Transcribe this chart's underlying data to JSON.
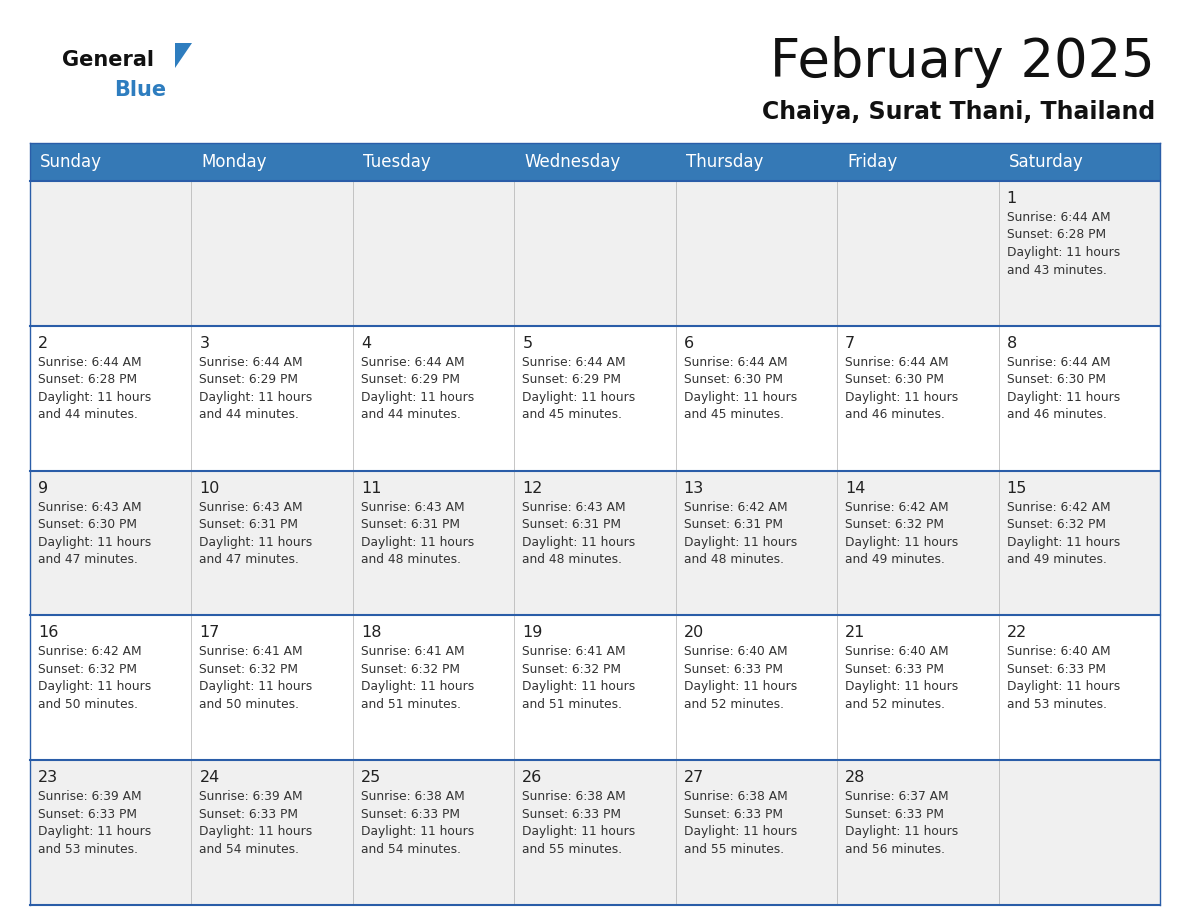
{
  "title": "February 2025",
  "subtitle": "Chaiya, Surat Thani, Thailand",
  "days_of_week": [
    "Sunday",
    "Monday",
    "Tuesday",
    "Wednesday",
    "Thursday",
    "Friday",
    "Saturday"
  ],
  "header_bg": "#3579B6",
  "header_text_color": "#FFFFFF",
  "cell_bg": "#F0F0F0",
  "cell_bg_white": "#FFFFFF",
  "separator_color": "#2A5DA8",
  "day_number_color": "#222222",
  "info_text_color": "#333333",
  "title_color": "#111111",
  "subtitle_color": "#111111",
  "logo_blue_color": "#2E7DBF",
  "weeks": [
    [
      {
        "day": null,
        "info": null
      },
      {
        "day": null,
        "info": null
      },
      {
        "day": null,
        "info": null
      },
      {
        "day": null,
        "info": null
      },
      {
        "day": null,
        "info": null
      },
      {
        "day": null,
        "info": null
      },
      {
        "day": 1,
        "info": "Sunrise: 6:44 AM\nSunset: 6:28 PM\nDaylight: 11 hours\nand 43 minutes."
      }
    ],
    [
      {
        "day": 2,
        "info": "Sunrise: 6:44 AM\nSunset: 6:28 PM\nDaylight: 11 hours\nand 44 minutes."
      },
      {
        "day": 3,
        "info": "Sunrise: 6:44 AM\nSunset: 6:29 PM\nDaylight: 11 hours\nand 44 minutes."
      },
      {
        "day": 4,
        "info": "Sunrise: 6:44 AM\nSunset: 6:29 PM\nDaylight: 11 hours\nand 44 minutes."
      },
      {
        "day": 5,
        "info": "Sunrise: 6:44 AM\nSunset: 6:29 PM\nDaylight: 11 hours\nand 45 minutes."
      },
      {
        "day": 6,
        "info": "Sunrise: 6:44 AM\nSunset: 6:30 PM\nDaylight: 11 hours\nand 45 minutes."
      },
      {
        "day": 7,
        "info": "Sunrise: 6:44 AM\nSunset: 6:30 PM\nDaylight: 11 hours\nand 46 minutes."
      },
      {
        "day": 8,
        "info": "Sunrise: 6:44 AM\nSunset: 6:30 PM\nDaylight: 11 hours\nand 46 minutes."
      }
    ],
    [
      {
        "day": 9,
        "info": "Sunrise: 6:43 AM\nSunset: 6:30 PM\nDaylight: 11 hours\nand 47 minutes."
      },
      {
        "day": 10,
        "info": "Sunrise: 6:43 AM\nSunset: 6:31 PM\nDaylight: 11 hours\nand 47 minutes."
      },
      {
        "day": 11,
        "info": "Sunrise: 6:43 AM\nSunset: 6:31 PM\nDaylight: 11 hours\nand 48 minutes."
      },
      {
        "day": 12,
        "info": "Sunrise: 6:43 AM\nSunset: 6:31 PM\nDaylight: 11 hours\nand 48 minutes."
      },
      {
        "day": 13,
        "info": "Sunrise: 6:42 AM\nSunset: 6:31 PM\nDaylight: 11 hours\nand 48 minutes."
      },
      {
        "day": 14,
        "info": "Sunrise: 6:42 AM\nSunset: 6:32 PM\nDaylight: 11 hours\nand 49 minutes."
      },
      {
        "day": 15,
        "info": "Sunrise: 6:42 AM\nSunset: 6:32 PM\nDaylight: 11 hours\nand 49 minutes."
      }
    ],
    [
      {
        "day": 16,
        "info": "Sunrise: 6:42 AM\nSunset: 6:32 PM\nDaylight: 11 hours\nand 50 minutes."
      },
      {
        "day": 17,
        "info": "Sunrise: 6:41 AM\nSunset: 6:32 PM\nDaylight: 11 hours\nand 50 minutes."
      },
      {
        "day": 18,
        "info": "Sunrise: 6:41 AM\nSunset: 6:32 PM\nDaylight: 11 hours\nand 51 minutes."
      },
      {
        "day": 19,
        "info": "Sunrise: 6:41 AM\nSunset: 6:32 PM\nDaylight: 11 hours\nand 51 minutes."
      },
      {
        "day": 20,
        "info": "Sunrise: 6:40 AM\nSunset: 6:33 PM\nDaylight: 11 hours\nand 52 minutes."
      },
      {
        "day": 21,
        "info": "Sunrise: 6:40 AM\nSunset: 6:33 PM\nDaylight: 11 hours\nand 52 minutes."
      },
      {
        "day": 22,
        "info": "Sunrise: 6:40 AM\nSunset: 6:33 PM\nDaylight: 11 hours\nand 53 minutes."
      }
    ],
    [
      {
        "day": 23,
        "info": "Sunrise: 6:39 AM\nSunset: 6:33 PM\nDaylight: 11 hours\nand 53 minutes."
      },
      {
        "day": 24,
        "info": "Sunrise: 6:39 AM\nSunset: 6:33 PM\nDaylight: 11 hours\nand 54 minutes."
      },
      {
        "day": 25,
        "info": "Sunrise: 6:38 AM\nSunset: 6:33 PM\nDaylight: 11 hours\nand 54 minutes."
      },
      {
        "day": 26,
        "info": "Sunrise: 6:38 AM\nSunset: 6:33 PM\nDaylight: 11 hours\nand 55 minutes."
      },
      {
        "day": 27,
        "info": "Sunrise: 6:38 AM\nSunset: 6:33 PM\nDaylight: 11 hours\nand 55 minutes."
      },
      {
        "day": 28,
        "info": "Sunrise: 6:37 AM\nSunset: 6:33 PM\nDaylight: 11 hours\nand 56 minutes."
      },
      {
        "day": null,
        "info": null
      }
    ]
  ],
  "fig_width": 11.88,
  "fig_height": 9.18,
  "dpi": 100
}
